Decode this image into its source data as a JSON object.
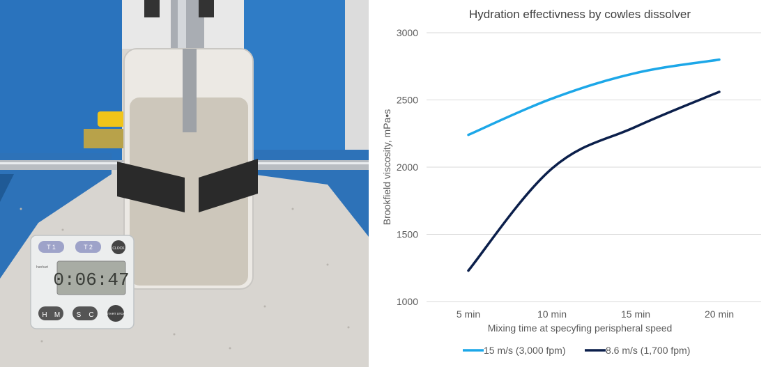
{
  "photo": {
    "timer_buttons": [
      "T 1",
      "T 2",
      "CLOCK",
      "H",
      "M",
      "S",
      "C",
      "START STOP"
    ],
    "timer_display": "0:06:47",
    "timer_brand": "hanhart"
  },
  "colors": {
    "series_a": "#1CA7E8",
    "series_b": "#0B1F4B",
    "grid": "#D9D9D9"
  },
  "chart_data": {
    "type": "line",
    "title": "Hydration effectivness by cowles dissolver",
    "xlabel": "Mixing time at specyfing perispheral speed",
    "ylabel": "Brookfield  viscosity, mPa•s",
    "categories": [
      "5 min",
      "10 min",
      "15 min",
      "20 min"
    ],
    "ylim": [
      1000,
      3000
    ],
    "yticks": [
      "1000",
      "1500",
      "2000",
      "2500",
      "3000"
    ],
    "grid": true,
    "legend_position": "bottom",
    "series": [
      {
        "name": "15 m/s (3,000 fpm)",
        "values": [
          2240,
          2510,
          2700,
          2800
        ]
      },
      {
        "name": "8.6 m/s (1,700 fpm)",
        "values": [
          1230,
          1990,
          2300,
          2560
        ]
      }
    ]
  }
}
